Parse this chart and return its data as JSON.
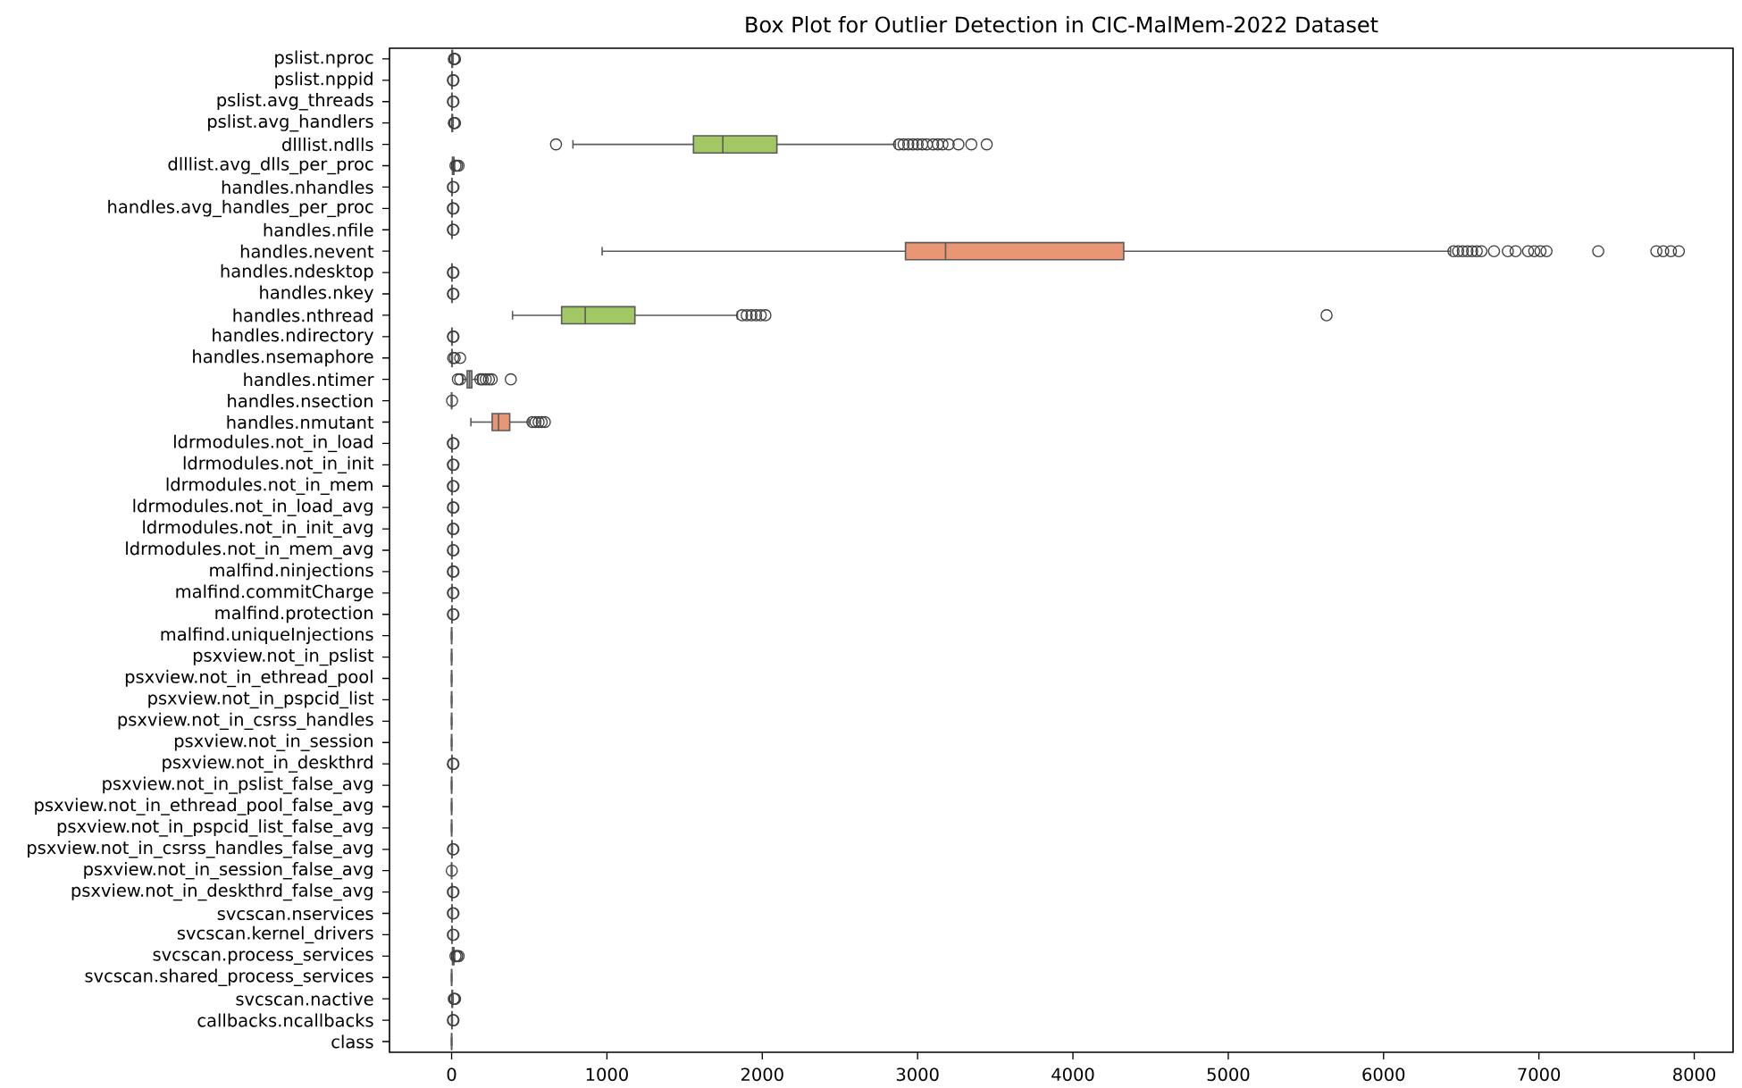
{
  "chart_data": {
    "type": "box",
    "orientation": "horizontal",
    "title": "Box Plot for Outlier Detection in CIC-MalMem-2022 Dataset",
    "categories": [
      "pslist.nproc",
      "pslist.nppid",
      "pslist.avg_threads",
      "pslist.avg_handlers",
      "dlllist.ndlls",
      "dlllist.avg_dlls_per_proc",
      "handles.nhandles",
      "handles.avg_handles_per_proc",
      "handles.nfile",
      "handles.nevent",
      "handles.ndesktop",
      "handles.nkey",
      "handles.nthread",
      "handles.ndirectory",
      "handles.nsemaphore",
      "handles.ntimer",
      "handles.nsection",
      "handles.nmutant",
      "ldrmodules.not_in_load",
      "ldrmodules.not_in_init",
      "ldrmodules.not_in_mem",
      "ldrmodules.not_in_load_avg",
      "ldrmodules.not_in_init_avg",
      "ldrmodules.not_in_mem_avg",
      "malfind.ninjections",
      "malfind.commitCharge",
      "malfind.protection",
      "malfind.uniqueInjections",
      "psxview.not_in_pslist",
      "psxview.not_in_ethread_pool",
      "psxview.not_in_pspcid_list",
      "psxview.not_in_csrss_handles",
      "psxview.not_in_session",
      "psxview.not_in_deskthrd",
      "psxview.not_in_pslist_false_avg",
      "psxview.not_in_ethread_pool_false_avg",
      "psxview.not_in_pspcid_list_false_avg",
      "psxview.not_in_csrss_handles_false_avg",
      "psxview.not_in_session_false_avg",
      "psxview.not_in_deskthrd_false_avg",
      "svcscan.nservices",
      "svcscan.kernel_drivers",
      "svcscan.process_services",
      "svcscan.shared_process_services",
      "svcscan.nactive",
      "callbacks.ncallbacks",
      "class"
    ],
    "boxes": [
      {
        "low": 0,
        "q1": 2,
        "median": 4,
        "q3": 6,
        "high": 10,
        "outliers": [
          14,
          18,
          22
        ]
      },
      {
        "low": 0,
        "q1": 1,
        "median": 2,
        "q3": 3,
        "high": 5,
        "outliers": [
          8,
          12
        ]
      },
      {
        "low": 0,
        "q1": 1,
        "median": 2,
        "q3": 3,
        "high": 5,
        "outliers": [
          8,
          12
        ]
      },
      {
        "low": 0,
        "q1": 2,
        "median": 4,
        "q3": 6,
        "high": 10,
        "outliers": [
          14,
          18,
          22
        ]
      },
      {
        "low": 781,
        "q1": 1557,
        "median": 1746,
        "q3": 2094,
        "high": 2857,
        "outliers": [
          672,
          2880,
          2910,
          2940,
          2970,
          3000,
          3030,
          3060,
          3100,
          3130,
          3160,
          3200,
          3263,
          3346,
          3445
        ]
      },
      {
        "low": 0,
        "q1": 5,
        "median": 10,
        "q3": 15,
        "high": 20,
        "outliers": [
          25,
          35,
          45
        ]
      },
      {
        "low": 0,
        "q1": 1,
        "median": 2,
        "q3": 3,
        "high": 5,
        "outliers": [
          8,
          12
        ]
      },
      {
        "low": 0,
        "q1": 1,
        "median": 2,
        "q3": 3,
        "high": 5,
        "outliers": [
          8,
          12
        ]
      },
      {
        "low": 0,
        "q1": 1,
        "median": 2,
        "q3": 3,
        "high": 5,
        "outliers": [
          8,
          12
        ]
      },
      {
        "low": 969,
        "q1": 2922,
        "median": 3180,
        "q3": 4327,
        "high": 6431,
        "outliers": [
          6450,
          6480,
          6510,
          6540,
          6570,
          6600,
          6630,
          6711,
          6800,
          6850,
          6930,
          6970,
          7010,
          7049,
          7382,
          7756,
          7800,
          7850,
          7901
        ]
      },
      {
        "low": 0,
        "q1": 1,
        "median": 2,
        "q3": 3,
        "high": 5,
        "outliers": [
          8,
          12
        ]
      },
      {
        "low": 0,
        "q1": 1,
        "median": 2,
        "q3": 3,
        "high": 5,
        "outliers": [
          8,
          12
        ]
      },
      {
        "low": 392,
        "q1": 708,
        "median": 860,
        "q3": 1180,
        "high": 1840,
        "outliers": [
          1870,
          1900,
          1930,
          1960,
          1990,
          2020,
          5633
        ]
      },
      {
        "low": 0,
        "q1": 1,
        "median": 2,
        "q3": 3,
        "high": 5,
        "outliers": [
          8,
          12
        ]
      },
      {
        "low": 0,
        "q1": 1,
        "median": 2,
        "q3": 3,
        "high": 5,
        "outliers": [
          10,
          20,
          55
        ]
      },
      {
        "low": 70,
        "q1": 100,
        "median": 115,
        "q3": 130,
        "high": 170,
        "outliers": [
          40,
          55,
          185,
          200,
          220,
          240,
          258,
          381
        ]
      },
      {
        "low": 0,
        "q1": 0,
        "median": 0,
        "q3": 0,
        "high": 0,
        "outliers": [
          3
        ]
      },
      {
        "low": 124,
        "q1": 261,
        "median": 302,
        "q3": 374,
        "high": 497,
        "outliers": [
          520,
          540,
          560,
          580,
          600
        ]
      },
      {
        "low": 0,
        "q1": 1,
        "median": 2,
        "q3": 3,
        "high": 5,
        "outliers": [
          8,
          12
        ]
      },
      {
        "low": 0,
        "q1": 1,
        "median": 2,
        "q3": 3,
        "high": 5,
        "outliers": [
          8,
          12
        ]
      },
      {
        "low": 0,
        "q1": 1,
        "median": 2,
        "q3": 3,
        "high": 5,
        "outliers": [
          8,
          12
        ]
      },
      {
        "low": 0,
        "q1": 1,
        "median": 2,
        "q3": 3,
        "high": 5,
        "outliers": [
          8,
          12
        ]
      },
      {
        "low": 0,
        "q1": 1,
        "median": 2,
        "q3": 3,
        "high": 5,
        "outliers": [
          8,
          12
        ]
      },
      {
        "low": 0,
        "q1": 1,
        "median": 2,
        "q3": 3,
        "high": 5,
        "outliers": [
          8,
          12
        ]
      },
      {
        "low": 0,
        "q1": 1,
        "median": 2,
        "q3": 3,
        "high": 5,
        "outliers": [
          8,
          12
        ]
      },
      {
        "low": 0,
        "q1": 1,
        "median": 2,
        "q3": 3,
        "high": 5,
        "outliers": [
          8,
          12
        ]
      },
      {
        "low": 0,
        "q1": 1,
        "median": 2,
        "q3": 3,
        "high": 5,
        "outliers": [
          8,
          12
        ]
      },
      {
        "low": 0,
        "q1": 0,
        "median": 0,
        "q3": 0,
        "high": 0
      },
      {
        "low": 0,
        "q1": 0,
        "median": 0,
        "q3": 0,
        "high": 0
      },
      {
        "low": 0,
        "q1": 0,
        "median": 0,
        "q3": 0,
        "high": 0
      },
      {
        "low": 0,
        "q1": 0,
        "median": 0,
        "q3": 0,
        "high": 0
      },
      {
        "low": 0,
        "q1": 0,
        "median": 0,
        "q3": 0,
        "high": 0
      },
      {
        "low": 0,
        "q1": 0,
        "median": 0,
        "q3": 0,
        "high": 0
      },
      {
        "low": 0,
        "q1": 1,
        "median": 2,
        "q3": 3,
        "high": 5,
        "outliers": [
          8,
          12
        ]
      },
      {
        "low": 0,
        "q1": 0,
        "median": 0,
        "q3": 0,
        "high": 0
      },
      {
        "low": 0,
        "q1": 0,
        "median": 0,
        "q3": 0,
        "high": 0
      },
      {
        "low": 0,
        "q1": 0,
        "median": 0,
        "q3": 0,
        "high": 0
      },
      {
        "low": 0,
        "q1": 1,
        "median": 2,
        "q3": 3,
        "high": 5,
        "outliers": [
          8,
          12
        ]
      },
      {
        "low": 0,
        "q1": 0,
        "median": 0,
        "q3": 0,
        "high": 0,
        "outliers": [
          1
        ]
      },
      {
        "low": 0,
        "q1": 1,
        "median": 2,
        "q3": 3,
        "high": 5,
        "outliers": [
          8,
          12
        ]
      },
      {
        "low": 0,
        "q1": 1,
        "median": 2,
        "q3": 3,
        "high": 5,
        "outliers": [
          8,
          12
        ]
      },
      {
        "low": 0,
        "q1": 1,
        "median": 2,
        "q3": 3,
        "high": 5,
        "outliers": [
          8,
          12
        ]
      },
      {
        "low": 0,
        "q1": 5,
        "median": 10,
        "q3": 15,
        "high": 20,
        "outliers": [
          25,
          35,
          45
        ]
      },
      {
        "low": 0,
        "q1": 0,
        "median": 0,
        "q3": 0,
        "high": 0
      },
      {
        "low": 0,
        "q1": 2,
        "median": 4,
        "q3": 6,
        "high": 10,
        "outliers": [
          14,
          18,
          22
        ]
      },
      {
        "low": 0,
        "q1": 1,
        "median": 2,
        "q3": 3,
        "high": 5,
        "outliers": [
          8,
          12
        ]
      },
      {
        "low": 0,
        "q1": 0,
        "median": 0,
        "q3": 0,
        "high": 0
      }
    ],
    "colors": [
      "#72b6a1",
      "#e99675",
      "#96a1c5",
      "#db8fc0",
      "#a2c765",
      "#eed551",
      "#dcc39f",
      "#b3b3b3",
      "#72b6a1",
      "#e99675",
      "#96a1c5",
      "#db8fc0",
      "#a2c765",
      "#eed551",
      "#dcc39f",
      "#b3b3b3",
      null,
      "#e99675",
      "#96a1c5",
      "#db8fc0",
      "#a2c765",
      "#eed551",
      "#dcc39f",
      "#b3b3b3",
      "#72b6a1",
      "#e99675",
      "#96a1c5",
      null,
      null,
      null,
      null,
      null,
      null,
      "#e99675",
      null,
      null,
      null,
      "#eed551",
      null,
      "#b3b3b3",
      "#72b6a1",
      "#e99675",
      "#96a1c5",
      null,
      "#a2c765",
      "#eed551",
      null
    ],
    "xlim": [
      -400,
      8250
    ],
    "xticks": [
      0,
      1000,
      2000,
      3000,
      4000,
      5000,
      6000,
      7000,
      8000
    ]
  }
}
